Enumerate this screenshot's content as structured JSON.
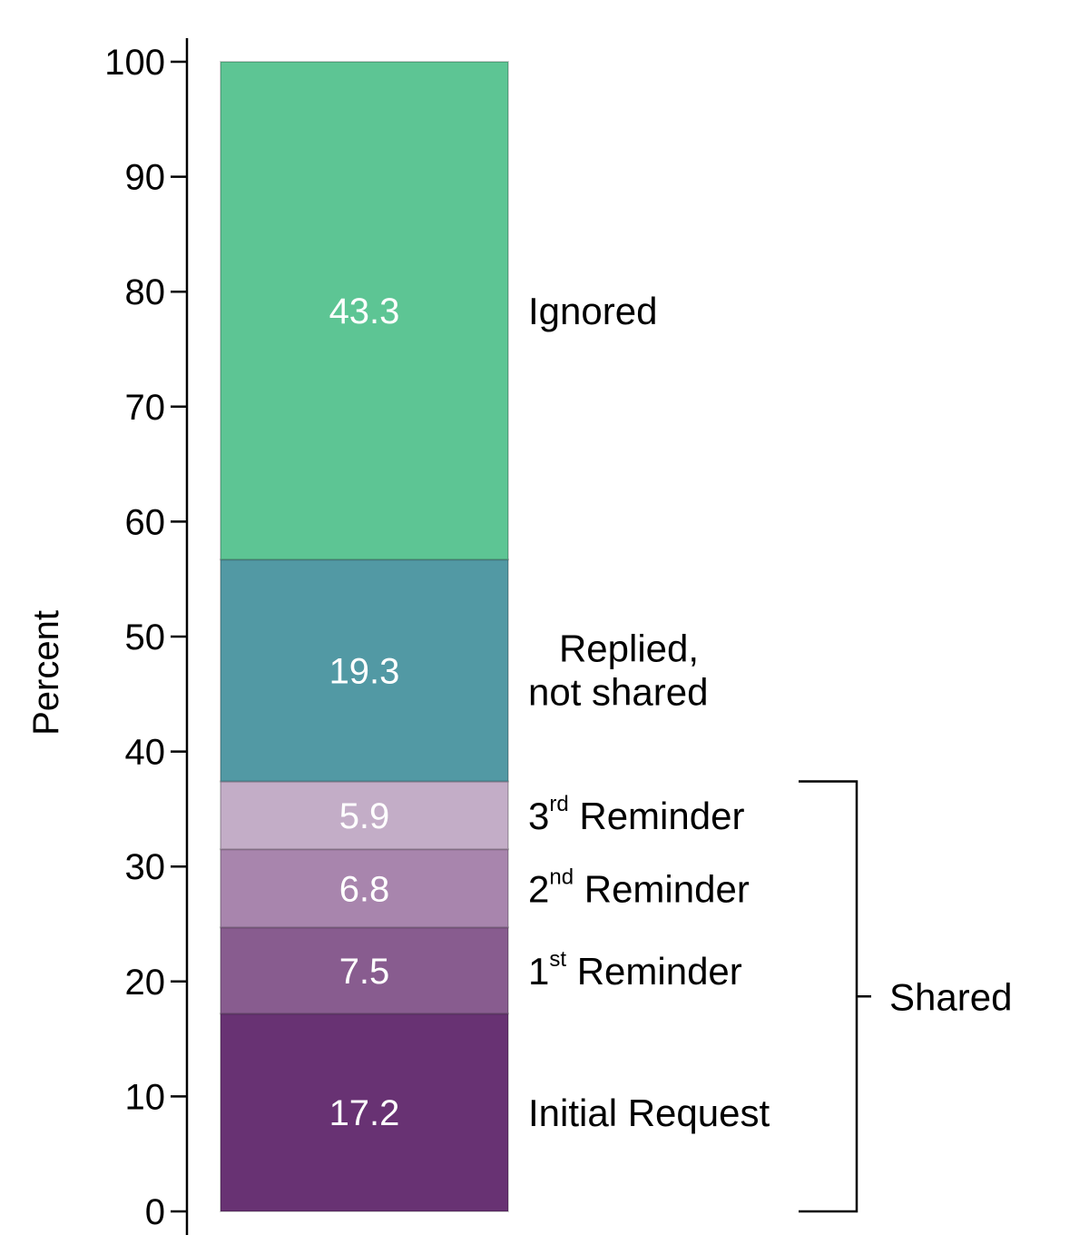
{
  "chart_data": {
    "type": "bar",
    "stacked": true,
    "ylabel": "Percent",
    "ylim": [
      0,
      100
    ],
    "yticks": [
      0,
      10,
      20,
      30,
      40,
      50,
      60,
      70,
      80,
      90,
      100
    ],
    "segments": [
      {
        "key": "initial",
        "value": 17.2,
        "label": "17.2",
        "name": "Initial Request",
        "base": "Initial Request",
        "sup": "",
        "suffix": "",
        "color": "#683273"
      },
      {
        "key": "first",
        "value": 7.5,
        "label": "7.5",
        "name": "1st Reminder",
        "base": "1",
        "sup": "st",
        "suffix": " Reminder",
        "color": "#885c8f"
      },
      {
        "key": "second",
        "value": 6.8,
        "label": "6.8",
        "name": "2nd Reminder",
        "base": "2",
        "sup": "nd",
        "suffix": " Reminder",
        "color": "#a885ad"
      },
      {
        "key": "third",
        "value": 5.9,
        "label": "5.9",
        "name": "3rd Reminder",
        "base": "3",
        "sup": "rd",
        "suffix": " Reminder",
        "color": "#c3adc7"
      },
      {
        "key": "replied",
        "value": 19.3,
        "label": "19.3",
        "name": "Replied, not shared",
        "lines": [
          "Replied,",
          "not shared"
        ],
        "color": "#5299a4"
      },
      {
        "key": "ignored",
        "value": 43.3,
        "label": "43.3",
        "name": "Ignored",
        "lines": [
          "Ignored"
        ],
        "color": "#5dc594"
      }
    ],
    "group": {
      "label": "Shared",
      "from": 0,
      "to": 37.4
    }
  }
}
